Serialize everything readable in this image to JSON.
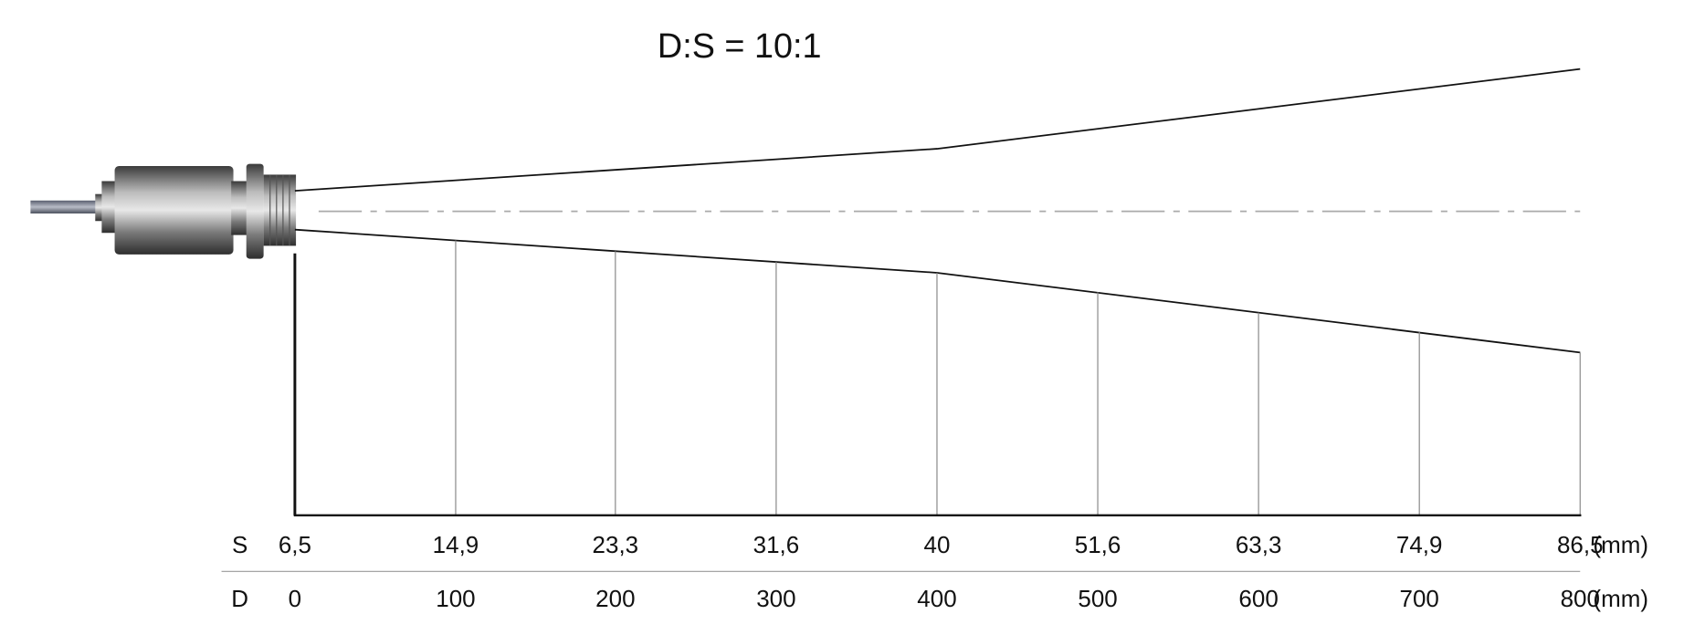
{
  "title": "D:S = 10:1",
  "rows": [
    {
      "label": "S",
      "values": [
        "6,5",
        "14,9",
        "23,3",
        "31,6",
        "40",
        "51,6",
        "63,3",
        "74,9",
        "86,5"
      ],
      "unit": "(mm)"
    },
    {
      "label": "D",
      "values": [
        "0",
        "100",
        "200",
        "300",
        "400",
        "500",
        "600",
        "700",
        "800"
      ],
      "unit": "(mm)"
    }
  ]
}
